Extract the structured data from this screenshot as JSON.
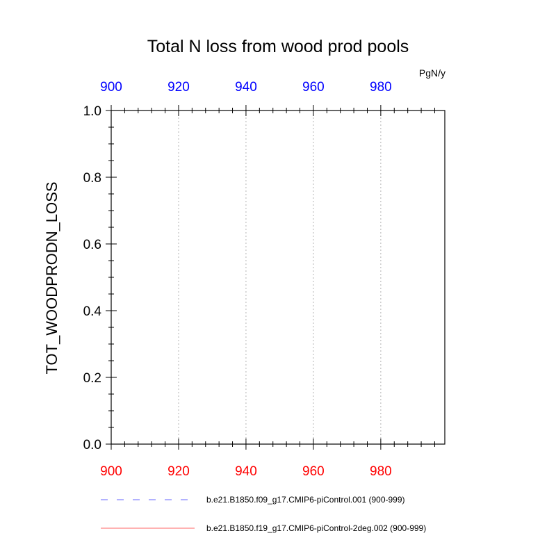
{
  "chart_data": {
    "type": "line",
    "title": "Total N loss from wood prod pools",
    "units": "PgN/y",
    "ylabel": "TOT_WOODPRODN_LOSS",
    "xlabel": "",
    "xlim": [
      900,
      999
    ],
    "ylim": [
      0,
      1
    ],
    "x_ticks": [
      900,
      920,
      940,
      960,
      980
    ],
    "y_ticks": [
      "0.0",
      "0.2",
      "0.4",
      "0.6",
      "0.8",
      "1.0"
    ],
    "y_tick_values": [
      0,
      0.2,
      0.4,
      0.6,
      0.8,
      1.0
    ],
    "grid": "vertical dotted at major x ticks",
    "bottom_axis_color": "#ff0000",
    "top_axis_color": "#0000ff",
    "series": [
      {
        "name": "b.e21.B1850.f09_g17.CMIP6-piControl.001 (900-999)",
        "color": "#0000ff",
        "style": "dashed",
        "axis": "top",
        "values": []
      },
      {
        "name": "b.e21.B1850.f19_g17.CMIP6-piControl-2deg.002 (900-999)",
        "color": "#ff0000",
        "style": "solid",
        "axis": "bottom",
        "values": []
      }
    ]
  }
}
